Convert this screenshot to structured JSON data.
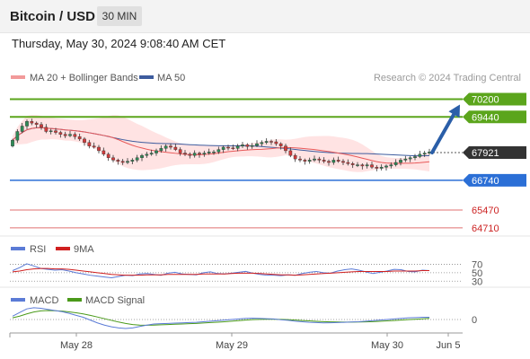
{
  "header": {
    "instrument": "Bitcoin / USD",
    "interval": "30 MIN"
  },
  "timestamp": "Thursday, May 30, 2024 9:08:40 AM CET",
  "colors": {
    "resistance": "#5ba51c",
    "current": "#333333",
    "pivot": "#2b6fd6",
    "support": "#cc2222",
    "bollinger": "#ffd9d9",
    "ma20": "#e85a5a",
    "ma50": "#3d5c9e",
    "bull": "#2e8b57",
    "bear": "#d23b3b",
    "rsi": "#5b7bd6",
    "rsi_ma": "#d02020",
    "macd": "#5b7bd6",
    "macd_signal": "#4a9a1a",
    "arrow": "#2a5ea8"
  },
  "chart_data": {
    "type": "candlestick",
    "title": "Bitcoin / USD",
    "interval": "30 MIN",
    "legend": {
      "ma20": "MA 20 + Bollinger Bands",
      "ma50": "MA 50"
    },
    "copyright": "Research © 2024 Trading Central",
    "x_ticks": [
      "May 28",
      "May 29",
      "May 30",
      "Jun 5"
    ],
    "price_range": [
      64400,
      70600
    ],
    "levels": {
      "resistances": [
        70200,
        69440
      ],
      "current": 67921,
      "pivot": 66740,
      "supports": [
        65470,
        64710
      ]
    },
    "level_labels": {
      "r1": "70200",
      "r2": "69440",
      "current": "67921",
      "pivot": "66740",
      "s1": "65470",
      "s2": "64710"
    },
    "forecast": {
      "from": 67921,
      "to": 70200
    },
    "closes": [
      68450,
      68820,
      69050,
      69250,
      69180,
      69120,
      69000,
      68820,
      68850,
      68780,
      68700,
      68640,
      68700,
      68600,
      68500,
      68350,
      68200,
      68150,
      68000,
      67850,
      67700,
      67600,
      67550,
      67500,
      67550,
      67600,
      67700,
      67800,
      67850,
      67900,
      68000,
      68100,
      68200,
      68150,
      68050,
      67900,
      67850,
      67800,
      67900,
      67850,
      67900,
      67950,
      67950,
      68050,
      68150,
      68120,
      68100,
      68200,
      68250,
      68180,
      68220,
      68300,
      68350,
      68400,
      68380,
      68300,
      68200,
      68000,
      67800,
      67650,
      67600,
      67550,
      67600,
      67650,
      67600,
      67550,
      67500,
      67600,
      67550,
      67500,
      67450,
      67400,
      67400,
      67350,
      67400,
      67300,
      67250,
      67300,
      67350,
      67400,
      67500,
      67600,
      67650,
      67700,
      67750,
      67850,
      67900,
      67950
    ],
    "rsi": {
      "label": "RSI",
      "ma_label": "9MA",
      "levels": [
        70,
        50,
        30
      ],
      "level_labels": [
        "70",
        "50",
        "30"
      ],
      "values": [
        55,
        62,
        71,
        66,
        60,
        58,
        56,
        57,
        54,
        50,
        47,
        44,
        42,
        40,
        38,
        41,
        44,
        43,
        47,
        48,
        46,
        44,
        49,
        51,
        47,
        46,
        45,
        50,
        52,
        48,
        47,
        49,
        51,
        53,
        49,
        46,
        44,
        44,
        43,
        45,
        44,
        48,
        51,
        53,
        50,
        49,
        54,
        57,
        59,
        56,
        52,
        48,
        51,
        54,
        58,
        57,
        53,
        52,
        56,
        55
      ],
      "ma_values": [
        52,
        54,
        57,
        59,
        60,
        60,
        59,
        59,
        58,
        56,
        54,
        52,
        50,
        48,
        46,
        45,
        44,
        44,
        44,
        45,
        45,
        45,
        46,
        46,
        46,
        46,
        46,
        47,
        47,
        47,
        47,
        48,
        49,
        49,
        49,
        48,
        47,
        46,
        45,
        45,
        44,
        45,
        46,
        47,
        48,
        49,
        50,
        51,
        52,
        53,
        53,
        53,
        53,
        53,
        54,
        54,
        54,
        54,
        55,
        55
      ]
    },
    "macd": {
      "label": "MACD",
      "signal_label": "MACD Signal",
      "zero_label": "0",
      "values": [
        120,
        250,
        380,
        420,
        400,
        360,
        320,
        280,
        220,
        150,
        80,
        -20,
        -120,
        -200,
        -260,
        -300,
        -320,
        -300,
        -250,
        -200,
        -160,
        -150,
        -140,
        -130,
        -120,
        -110,
        -100,
        -80,
        -60,
        -40,
        -20,
        0,
        20,
        40,
        50,
        40,
        30,
        20,
        -10,
        -30,
        -60,
        -80,
        -100,
        -110,
        -120,
        -115,
        -110,
        -100,
        -90,
        -80,
        -60,
        -40,
        -20,
        0,
        20,
        40,
        60,
        70,
        80,
        80
      ],
      "signal_values": [
        60,
        120,
        200,
        270,
        310,
        320,
        315,
        300,
        275,
        240,
        200,
        150,
        90,
        30,
        -30,
        -90,
        -140,
        -180,
        -200,
        -205,
        -200,
        -190,
        -180,
        -170,
        -160,
        -150,
        -140,
        -125,
        -110,
        -95,
        -80,
        -60,
        -40,
        -20,
        -5,
        5,
        10,
        10,
        5,
        -5,
        -20,
        -35,
        -50,
        -65,
        -75,
        -85,
        -90,
        -92,
        -92,
        -90,
        -85,
        -75,
        -65,
        -50,
        -35,
        -20,
        -5,
        10,
        25,
        40
      ]
    }
  }
}
